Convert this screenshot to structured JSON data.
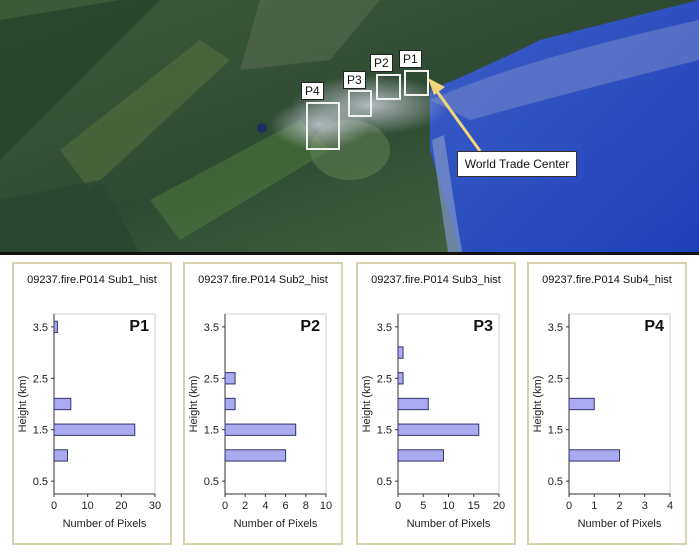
{
  "map": {
    "boxes": [
      "P4",
      "P3",
      "P2",
      "P1"
    ],
    "callout": "World Trade Center"
  },
  "chart_data": [
    {
      "type": "bar",
      "orientation": "horizontal",
      "title": "09237.fire.P014 Sub1_hist",
      "panel_label": "P1",
      "xlabel": "Number of Pixels",
      "ylabel": "Height (km)",
      "xlim": [
        0,
        30
      ],
      "xticks": [
        0,
        10,
        20,
        30
      ],
      "yticks": [
        0.5,
        1.5,
        2.5,
        3.5
      ],
      "bars": [
        {
          "y": 1.0,
          "value": 4
        },
        {
          "y": 1.5,
          "value": 24
        },
        {
          "y": 2.0,
          "value": 5
        },
        {
          "y": 3.5,
          "value": 1
        }
      ]
    },
    {
      "type": "bar",
      "orientation": "horizontal",
      "title": "09237.fire.P014 Sub2_hist",
      "panel_label": "P2",
      "xlabel": "Number of Pixels",
      "ylabel": "Height (km)",
      "xlim": [
        0,
        10
      ],
      "xticks": [
        0,
        2,
        4,
        6,
        8,
        10
      ],
      "yticks": [
        0.5,
        1.5,
        2.5,
        3.5
      ],
      "bars": [
        {
          "y": 1.0,
          "value": 6
        },
        {
          "y": 1.5,
          "value": 7
        },
        {
          "y": 2.0,
          "value": 1
        },
        {
          "y": 2.5,
          "value": 1
        }
      ]
    },
    {
      "type": "bar",
      "orientation": "horizontal",
      "title": "09237.fire.P014 Sub3_hist",
      "panel_label": "P3",
      "xlabel": "Number of Pixels",
      "ylabel": "Height (km)",
      "xlim": [
        0,
        20
      ],
      "xticks": [
        0,
        5,
        10,
        15,
        20
      ],
      "yticks": [
        0.5,
        1.5,
        2.5,
        3.5
      ],
      "bars": [
        {
          "y": 1.0,
          "value": 9
        },
        {
          "y": 1.5,
          "value": 16
        },
        {
          "y": 2.0,
          "value": 6
        },
        {
          "y": 2.5,
          "value": 1
        },
        {
          "y": 3.0,
          "value": 1
        }
      ]
    },
    {
      "type": "bar",
      "orientation": "horizontal",
      "title": "09237.fire.P014 Sub4_hist",
      "panel_label": "P4",
      "xlabel": "Number of Pixels",
      "ylabel": "Height (km)",
      "xlim": [
        0,
        4
      ],
      "xticks": [
        0,
        1,
        2,
        3,
        4
      ],
      "yticks": [
        0.5,
        1.5,
        2.5,
        3.5
      ],
      "bars": [
        {
          "y": 1.0,
          "value": 2
        },
        {
          "y": 2.0,
          "value": 1
        }
      ]
    }
  ]
}
